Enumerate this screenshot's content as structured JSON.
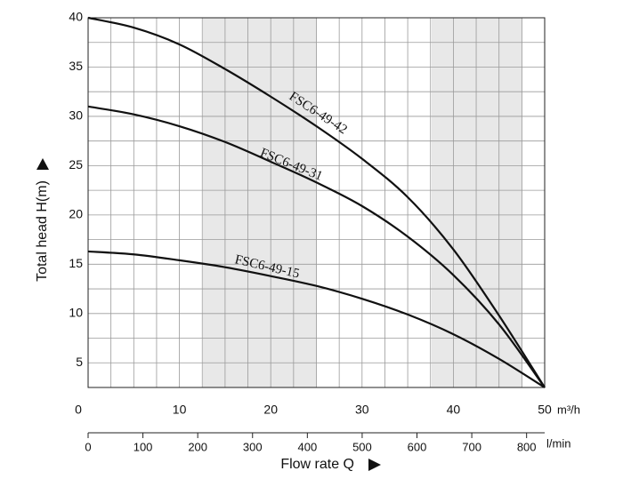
{
  "chart_data": {
    "type": "line",
    "xlabel": "Flow rate Q",
    "ylabel": "Total head H(m)",
    "x_unit": "m³/h",
    "x2_unit": "l/min",
    "x": [
      0,
      5,
      10,
      15,
      20,
      25,
      30,
      35,
      40,
      45,
      50
    ],
    "series": [
      {
        "name": "FSC6-49-42",
        "color": "#111111",
        "values": [
          40,
          39,
          37.3,
          34.8,
          32,
          29,
          25.7,
          21.8,
          16.5,
          9.8,
          2.5
        ]
      },
      {
        "name": "FSC6-49-31",
        "color": "#111111",
        "values": [
          31,
          30.2,
          29,
          27.4,
          25.4,
          23.3,
          20.9,
          17.8,
          13.9,
          8.9,
          2.5
        ]
      },
      {
        "name": "FSC6-49-15",
        "color": "#111111",
        "values": [
          16.3,
          16,
          15.4,
          14.7,
          13.8,
          12.8,
          11.5,
          9.9,
          7.9,
          5.4,
          2.5
        ]
      }
    ],
    "xlim": [
      0,
      50
    ],
    "xticks": [
      0,
      10,
      20,
      30,
      40,
      50
    ],
    "x2lim": [
      0,
      833
    ],
    "x2ticks": [
      0,
      100,
      200,
      300,
      400,
      500,
      600,
      700,
      800
    ],
    "ylim": [
      2.5,
      40
    ],
    "yticks": [
      5,
      10,
      15,
      20,
      25,
      30,
      35,
      40
    ],
    "grid": true
  }
}
